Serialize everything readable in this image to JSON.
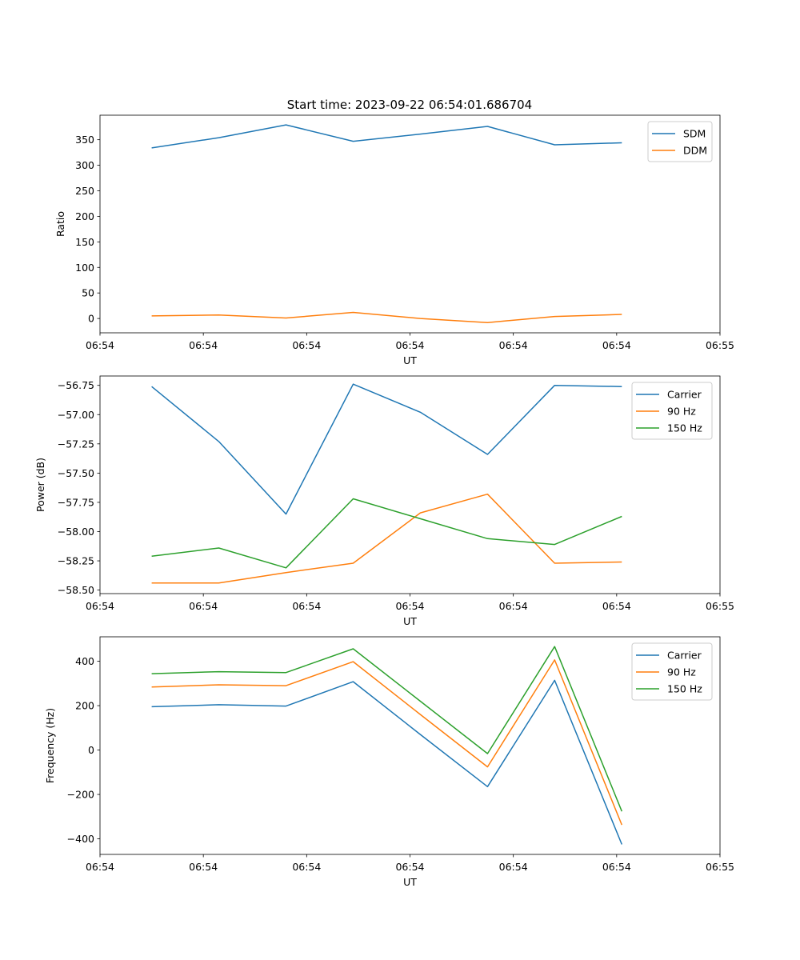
{
  "figure_title": "Start time: 2023-09-22 06:54:01.686704",
  "chart_data": [
    {
      "type": "line",
      "xlabel": "UT",
      "ylabel": "Ratio",
      "xlim": [
        0,
        12
      ],
      "xticks": [
        0,
        2,
        4,
        6,
        8,
        10,
        12
      ],
      "xtick_labels": [
        "06:54",
        "06:54",
        "06:54",
        "06:54",
        "06:54",
        "06:54",
        "06:55"
      ],
      "ylim": [
        -28,
        398
      ],
      "yticks": [
        0,
        50,
        100,
        150,
        200,
        250,
        300,
        350
      ],
      "ytick_labels": [
        "0",
        "50",
        "100",
        "150",
        "200",
        "250",
        "300",
        "350"
      ],
      "x": [
        1,
        2.3,
        3.6,
        4.9,
        6.2,
        7.5,
        8.8,
        10.1
      ],
      "series": [
        {
          "name": "SDM",
          "color": "#1f77b4",
          "values": [
            334,
            354,
            379,
            347,
            361,
            376,
            340,
            344
          ]
        },
        {
          "name": "DDM",
          "color": "#ff7f0e",
          "values": [
            5,
            7,
            1,
            12,
            0,
            -8,
            4,
            8
          ]
        }
      ]
    },
    {
      "type": "line",
      "xlabel": "UT",
      "ylabel": "Power (dB)",
      "xlim": [
        0,
        12
      ],
      "xticks": [
        0,
        2,
        4,
        6,
        8,
        10,
        12
      ],
      "xtick_labels": [
        "06:54",
        "06:54",
        "06:54",
        "06:54",
        "06:54",
        "06:54",
        "06:55"
      ],
      "ylim": [
        -58.53,
        -56.67
      ],
      "yticks": [
        -58.5,
        -58.25,
        -58.0,
        -57.75,
        -57.5,
        -57.25,
        -57.0,
        -56.75
      ],
      "ytick_labels": [
        "−58.50",
        "−58.25",
        "−58.00",
        "−57.75",
        "−57.50",
        "−57.25",
        "−57.00",
        "−56.75"
      ],
      "x": [
        1,
        2.3,
        3.6,
        4.9,
        6.2,
        7.5,
        8.8,
        10.1
      ],
      "series": [
        {
          "name": "Carrier",
          "color": "#1f77b4",
          "values": [
            -56.76,
            -57.23,
            -57.85,
            -56.74,
            -56.98,
            -57.34,
            -56.75,
            -56.76
          ]
        },
        {
          "name": "90 Hz",
          "color": "#ff7f0e",
          "values": [
            -58.44,
            -58.44,
            -58.35,
            -58.27,
            -57.84,
            -57.68,
            -58.27,
            -58.26
          ]
        },
        {
          "name": "150 Hz",
          "color": "#2ca02c",
          "values": [
            -58.21,
            -58.14,
            -58.31,
            -57.72,
            -57.89,
            -58.06,
            -58.11,
            -57.87
          ]
        }
      ]
    },
    {
      "type": "line",
      "xlabel": "UT",
      "ylabel": "Frequency (Hz)",
      "xlim": [
        0,
        12
      ],
      "xticks": [
        0,
        2,
        4,
        6,
        8,
        10,
        12
      ],
      "xtick_labels": [
        "06:54",
        "06:54",
        "06:54",
        "06:54",
        "06:54",
        "06:54",
        "06:55"
      ],
      "ylim": [
        -470,
        510
      ],
      "yticks": [
        -400,
        -200,
        0,
        200,
        400
      ],
      "ytick_labels": [
        "−400",
        "−200",
        "0",
        "200",
        "400"
      ],
      "x": [
        1,
        2.3,
        3.6,
        4.9,
        6.2,
        7.5,
        8.8,
        10.1
      ],
      "series": [
        {
          "name": "Carrier",
          "color": "#1f77b4",
          "values": [
            195,
            204,
            198,
            308,
            70,
            -165,
            314,
            -425
          ]
        },
        {
          "name": "90 Hz",
          "color": "#ff7f0e",
          "values": [
            284,
            294,
            290,
            398,
            160,
            -76,
            406,
            -337
          ]
        },
        {
          "name": "150 Hz",
          "color": "#2ca02c",
          "values": [
            344,
            353,
            349,
            456,
            220,
            -16,
            466,
            -276
          ]
        }
      ]
    }
  ]
}
